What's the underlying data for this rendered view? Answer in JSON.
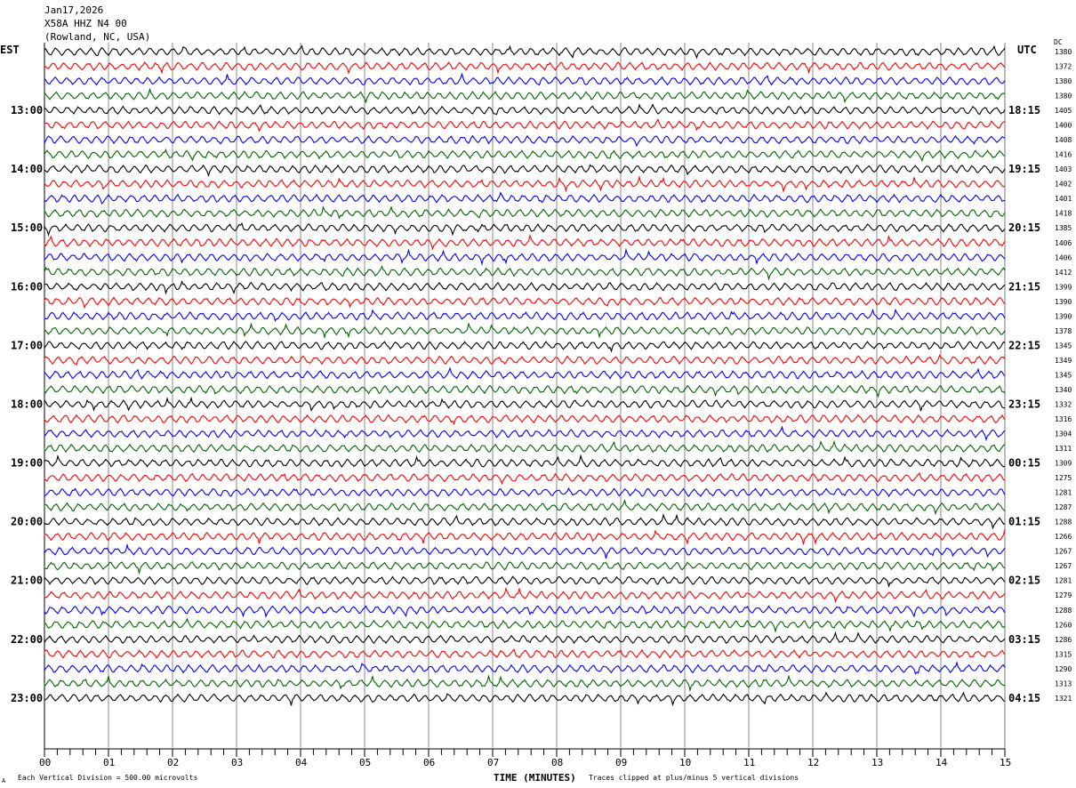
{
  "header": {
    "date": "Jan17,2026",
    "station": "X58A HHZ N4 00",
    "location": "(Rowland, NC, USA)"
  },
  "left_axis_label": "EST",
  "right_axis_label": "UTC",
  "dc_label": "DC",
  "footer": {
    "scale_note": "Each Vertical Division =  500.00 microvolts",
    "xlabel": "TIME (MINUTES)",
    "clip_note": "Traces clipped at plus/minus 5 vertical divisions"
  },
  "chart_data": {
    "type": "line",
    "xlabel": "TIME (MINUTES)",
    "xlim": [
      0,
      15
    ],
    "x_ticks": [
      "00",
      "01",
      "02",
      "03",
      "04",
      "05",
      "06",
      "07",
      "08",
      "09",
      "10",
      "11",
      "12",
      "13",
      "14",
      "15"
    ],
    "trace_colors": [
      "#000000",
      "#ff0000",
      "#0000ff",
      "#006400"
    ],
    "grid": "vertical every minute",
    "traces": [
      {
        "est": "",
        "utc": "",
        "dc": "1380"
      },
      {
        "est": "",
        "utc": "",
        "dc": "1372"
      },
      {
        "est": "",
        "utc": "",
        "dc": "1380"
      },
      {
        "est": "",
        "utc": "",
        "dc": "1380"
      },
      {
        "est": "13:00",
        "utc": "18:15",
        "dc": "1405"
      },
      {
        "est": "",
        "utc": "",
        "dc": "1400"
      },
      {
        "est": "",
        "utc": "",
        "dc": "1408"
      },
      {
        "est": "",
        "utc": "",
        "dc": "1416"
      },
      {
        "est": "14:00",
        "utc": "19:15",
        "dc": "1403"
      },
      {
        "est": "",
        "utc": "",
        "dc": "1402"
      },
      {
        "est": "",
        "utc": "",
        "dc": "1401"
      },
      {
        "est": "",
        "utc": "",
        "dc": "1418"
      },
      {
        "est": "15:00",
        "utc": "20:15",
        "dc": "1385"
      },
      {
        "est": "",
        "utc": "",
        "dc": "1406"
      },
      {
        "est": "",
        "utc": "",
        "dc": "1406"
      },
      {
        "est": "",
        "utc": "",
        "dc": "1412"
      },
      {
        "est": "16:00",
        "utc": "21:15",
        "dc": "1399"
      },
      {
        "est": "",
        "utc": "",
        "dc": "1390"
      },
      {
        "est": "",
        "utc": "",
        "dc": "1390"
      },
      {
        "est": "",
        "utc": "",
        "dc": "1378"
      },
      {
        "est": "17:00",
        "utc": "22:15",
        "dc": "1345"
      },
      {
        "est": "",
        "utc": "",
        "dc": "1349"
      },
      {
        "est": "",
        "utc": "",
        "dc": "1345"
      },
      {
        "est": "",
        "utc": "",
        "dc": "1340"
      },
      {
        "est": "18:00",
        "utc": "23:15",
        "dc": "1332"
      },
      {
        "est": "",
        "utc": "",
        "dc": "1316"
      },
      {
        "est": "",
        "utc": "",
        "dc": "1304"
      },
      {
        "est": "",
        "utc": "",
        "dc": "1311"
      },
      {
        "est": "19:00",
        "utc": "00:15",
        "dc": "1309"
      },
      {
        "est": "",
        "utc": "",
        "dc": "1275"
      },
      {
        "est": "",
        "utc": "",
        "dc": "1281"
      },
      {
        "est": "",
        "utc": "",
        "dc": "1287"
      },
      {
        "est": "20:00",
        "utc": "01:15",
        "dc": "1288"
      },
      {
        "est": "",
        "utc": "",
        "dc": "1266"
      },
      {
        "est": "",
        "utc": "",
        "dc": "1267"
      },
      {
        "est": "",
        "utc": "",
        "dc": "1267"
      },
      {
        "est": "21:00",
        "utc": "02:15",
        "dc": "1281"
      },
      {
        "est": "",
        "utc": "",
        "dc": "1279"
      },
      {
        "est": "",
        "utc": "",
        "dc": "1288"
      },
      {
        "est": "",
        "utc": "",
        "dc": "1260"
      },
      {
        "est": "22:00",
        "utc": "03:15",
        "dc": "1286"
      },
      {
        "est": "",
        "utc": "",
        "dc": "1315"
      },
      {
        "est": "",
        "utc": "",
        "dc": "1290"
      },
      {
        "est": "",
        "utc": "",
        "dc": "1313"
      },
      {
        "est": "23:00",
        "utc": "04:15",
        "dc": "1321"
      }
    ]
  }
}
